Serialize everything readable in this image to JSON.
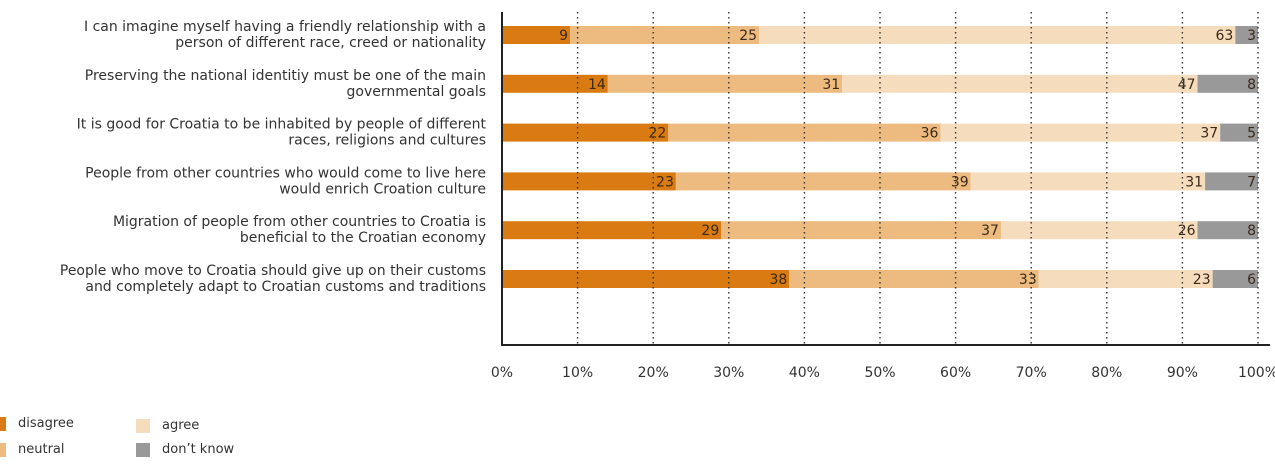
{
  "chart_data": {
    "type": "bar",
    "orientation": "horizontal",
    "stacked": true,
    "categories": [
      [
        "I can imagine myself having a friendly relationship with a",
        "person of different race, creed or nationality"
      ],
      [
        "Preserving the national identitiy must be one of the main",
        "governmental goals"
      ],
      [
        "It is good for Croatia to be inhabited by people of different",
        "races, religions and cultures"
      ],
      [
        "People from other countries who would come to live here",
        "would enrich Croation culture"
      ],
      [
        "Migration of people from other countries to Croatia is",
        "beneficial to the Croatian economy"
      ],
      [
        "People who move to Croatia should give up on their customs",
        "and completely adapt to Croatian customs and traditions"
      ]
    ],
    "series": [
      {
        "name": "disagree",
        "color": "#d97b12",
        "values": [
          9,
          14,
          22,
          23,
          29,
          38
        ]
      },
      {
        "name": "neutral",
        "color": "#edbb7f",
        "values": [
          25,
          31,
          36,
          39,
          37,
          33
        ]
      },
      {
        "name": "agree",
        "color": "#f5dcbd",
        "values": [
          63,
          47,
          37,
          31,
          26,
          23
        ]
      },
      {
        "name": "don’t know",
        "color": "#999999",
        "values": [
          3,
          8,
          5,
          7,
          8,
          6
        ]
      }
    ],
    "xlim": [
      0,
      100
    ],
    "x_ticks": [
      "0%",
      "10%",
      "20%",
      "30%",
      "40%",
      "50%",
      "60%",
      "70%",
      "80%",
      "90%",
      "100%"
    ],
    "grid": "vertical dotted",
    "legend_position": "bottom-left"
  }
}
